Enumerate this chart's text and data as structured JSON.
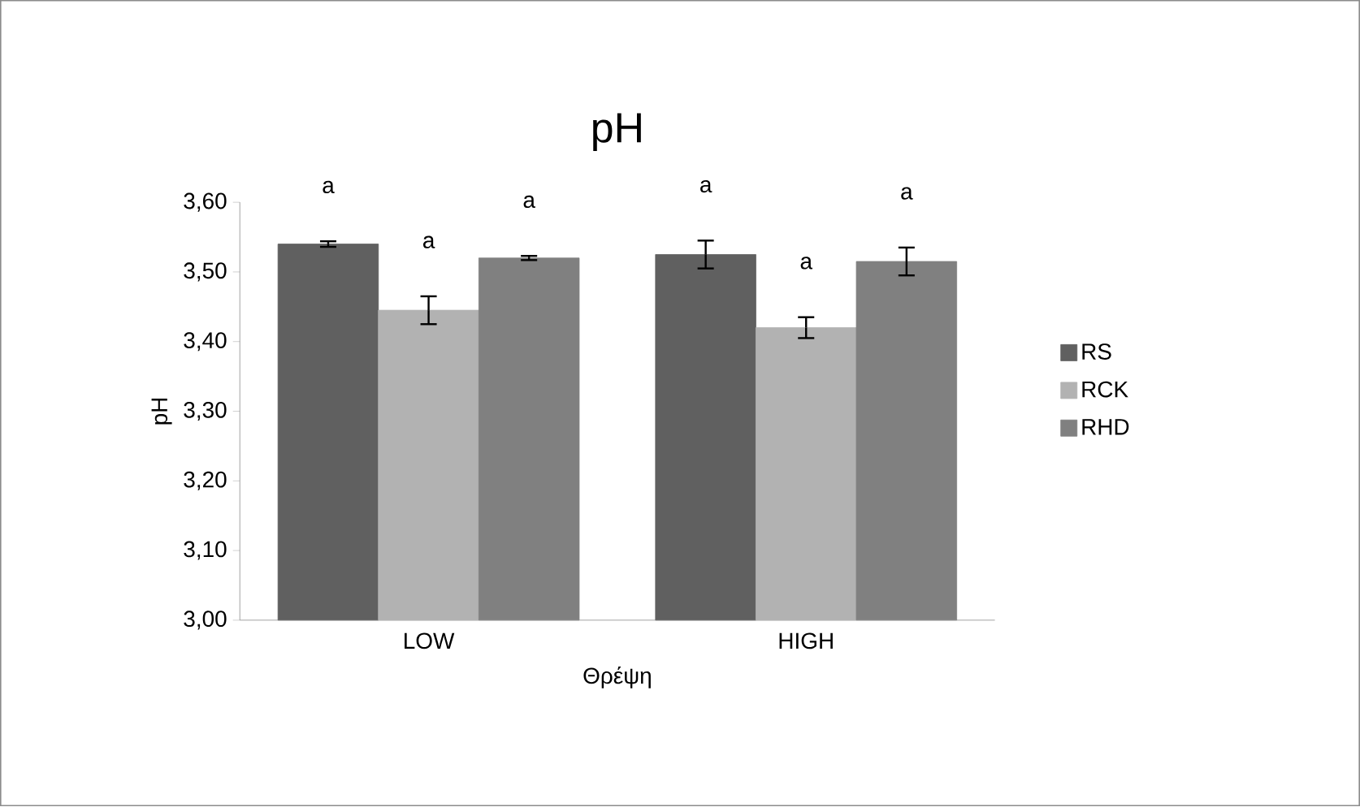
{
  "chart_data": {
    "type": "bar",
    "title": "pH",
    "xlabel": "Θρέψη",
    "ylabel": "pH",
    "categories": [
      "LOW",
      "HIGH"
    ],
    "series": [
      {
        "name": "RS",
        "color": "#606060",
        "values": [
          3.54,
          3.525
        ],
        "errors": [
          0.004,
          0.02
        ]
      },
      {
        "name": "RCK",
        "color": "#b2b2b2",
        "values": [
          3.445,
          3.42
        ],
        "errors": [
          0.02,
          0.015
        ]
      },
      {
        "name": "RHD",
        "color": "#808080",
        "values": [
          3.52,
          3.515
        ],
        "errors": [
          0.003,
          0.02
        ]
      }
    ],
    "ylim": [
      3.0,
      3.6
    ],
    "yticks": [
      {
        "value": 3.0,
        "label": "3,00"
      },
      {
        "value": 3.1,
        "label": "3,10"
      },
      {
        "value": 3.2,
        "label": "3,20"
      },
      {
        "value": 3.3,
        "label": "3,30"
      },
      {
        "value": 3.4,
        "label": "3,40"
      },
      {
        "value": 3.5,
        "label": "3,50"
      },
      {
        "value": 3.6,
        "label": "3,60"
      }
    ],
    "annotations": [
      "a",
      "a",
      "a",
      "a",
      "a",
      "a"
    ],
    "grid": false,
    "legend": "right"
  }
}
